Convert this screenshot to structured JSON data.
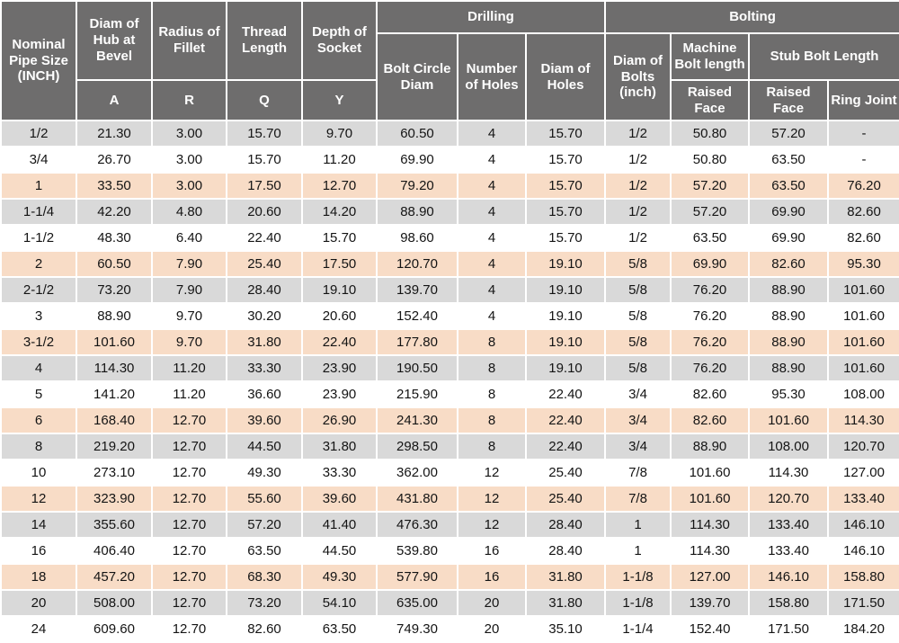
{
  "header": {
    "nominal": "Nominal Pipe Size (INCH)",
    "hub": "Diam of Hub at Bevel",
    "hub_letter": "A",
    "fillet": "Radius of Fillet",
    "fillet_letter": "R",
    "thread": "Thread Length",
    "thread_letter": "Q",
    "socket": "Depth of Socket",
    "socket_letter": "Y",
    "group_drilling": "Drilling",
    "bolt_circle": "Bolt Circle Diam",
    "num_holes": "Number of Holes",
    "diam_holes": "Diam of Holes",
    "group_bolting": "Bolting",
    "diam_bolts": "Diam of Bolts (inch)",
    "machine_bolt": "Machine Bolt length",
    "machine_raised_face": "Raised Face",
    "stub_bolt": "Stub Bolt Length",
    "stub_raised_face": "Raised Face",
    "ring_joint": "Ring Joint"
  },
  "rows": [
    [
      "1/2",
      "21.30",
      "3.00",
      "15.70",
      "9.70",
      "60.50",
      "4",
      "15.70",
      "1/2",
      "50.80",
      "57.20",
      "-"
    ],
    [
      "3/4",
      "26.70",
      "3.00",
      "15.70",
      "11.20",
      "69.90",
      "4",
      "15.70",
      "1/2",
      "50.80",
      "63.50",
      "-"
    ],
    [
      "1",
      "33.50",
      "3.00",
      "17.50",
      "12.70",
      "79.20",
      "4",
      "15.70",
      "1/2",
      "57.20",
      "63.50",
      "76.20"
    ],
    [
      "1-1/4",
      "42.20",
      "4.80",
      "20.60",
      "14.20",
      "88.90",
      "4",
      "15.70",
      "1/2",
      "57.20",
      "69.90",
      "82.60"
    ],
    [
      "1-1/2",
      "48.30",
      "6.40",
      "22.40",
      "15.70",
      "98.60",
      "4",
      "15.70",
      "1/2",
      "63.50",
      "69.90",
      "82.60"
    ],
    [
      "2",
      "60.50",
      "7.90",
      "25.40",
      "17.50",
      "120.70",
      "4",
      "19.10",
      "5/8",
      "69.90",
      "82.60",
      "95.30"
    ],
    [
      "2-1/2",
      "73.20",
      "7.90",
      "28.40",
      "19.10",
      "139.70",
      "4",
      "19.10",
      "5/8",
      "76.20",
      "88.90",
      "101.60"
    ],
    [
      "3",
      "88.90",
      "9.70",
      "30.20",
      "20.60",
      "152.40",
      "4",
      "19.10",
      "5/8",
      "76.20",
      "88.90",
      "101.60"
    ],
    [
      "3-1/2",
      "101.60",
      "9.70",
      "31.80",
      "22.40",
      "177.80",
      "8",
      "19.10",
      "5/8",
      "76.20",
      "88.90",
      "101.60"
    ],
    [
      "4",
      "114.30",
      "11.20",
      "33.30",
      "23.90",
      "190.50",
      "8",
      "19.10",
      "5/8",
      "76.20",
      "88.90",
      "101.60"
    ],
    [
      "5",
      "141.20",
      "11.20",
      "36.60",
      "23.90",
      "215.90",
      "8",
      "22.40",
      "3/4",
      "82.60",
      "95.30",
      "108.00"
    ],
    [
      "6",
      "168.40",
      "12.70",
      "39.60",
      "26.90",
      "241.30",
      "8",
      "22.40",
      "3/4",
      "82.60",
      "101.60",
      "114.30"
    ],
    [
      "8",
      "219.20",
      "12.70",
      "44.50",
      "31.80",
      "298.50",
      "8",
      "22.40",
      "3/4",
      "88.90",
      "108.00",
      "120.70"
    ],
    [
      "10",
      "273.10",
      "12.70",
      "49.30",
      "33.30",
      "362.00",
      "12",
      "25.40",
      "7/8",
      "101.60",
      "114.30",
      "127.00"
    ],
    [
      "12",
      "323.90",
      "12.70",
      "55.60",
      "39.60",
      "431.80",
      "12",
      "25.40",
      "7/8",
      "101.60",
      "120.70",
      "133.40"
    ],
    [
      "14",
      "355.60",
      "12.70",
      "57.20",
      "41.40",
      "476.30",
      "12",
      "28.40",
      "1",
      "114.30",
      "133.40",
      "146.10"
    ],
    [
      "16",
      "406.40",
      "12.70",
      "63.50",
      "44.50",
      "539.80",
      "16",
      "28.40",
      "1",
      "114.30",
      "133.40",
      "146.10"
    ],
    [
      "18",
      "457.20",
      "12.70",
      "68.30",
      "49.30",
      "577.90",
      "16",
      "31.80",
      "1-1/8",
      "127.00",
      "146.10",
      "158.80"
    ],
    [
      "20",
      "508.00",
      "12.70",
      "73.20",
      "54.10",
      "635.00",
      "20",
      "31.80",
      "1-1/8",
      "139.70",
      "158.80",
      "171.50"
    ],
    [
      "24",
      "609.60",
      "12.70",
      "82.60",
      "63.50",
      "749.30",
      "20",
      "35.10",
      "1-1/4",
      "152.40",
      "171.50",
      "184.20"
    ]
  ],
  "row_color_cycle": [
    "gray",
    "white",
    "peach"
  ],
  "colors": {
    "header_bg": "#6e6d6d",
    "header_text": "#ffffff",
    "row_gray": "#d9d9d9",
    "row_peach": "#f8dcc6",
    "row_white": "#ffffff",
    "grid": "#ffffff",
    "data_text": "#141414"
  }
}
